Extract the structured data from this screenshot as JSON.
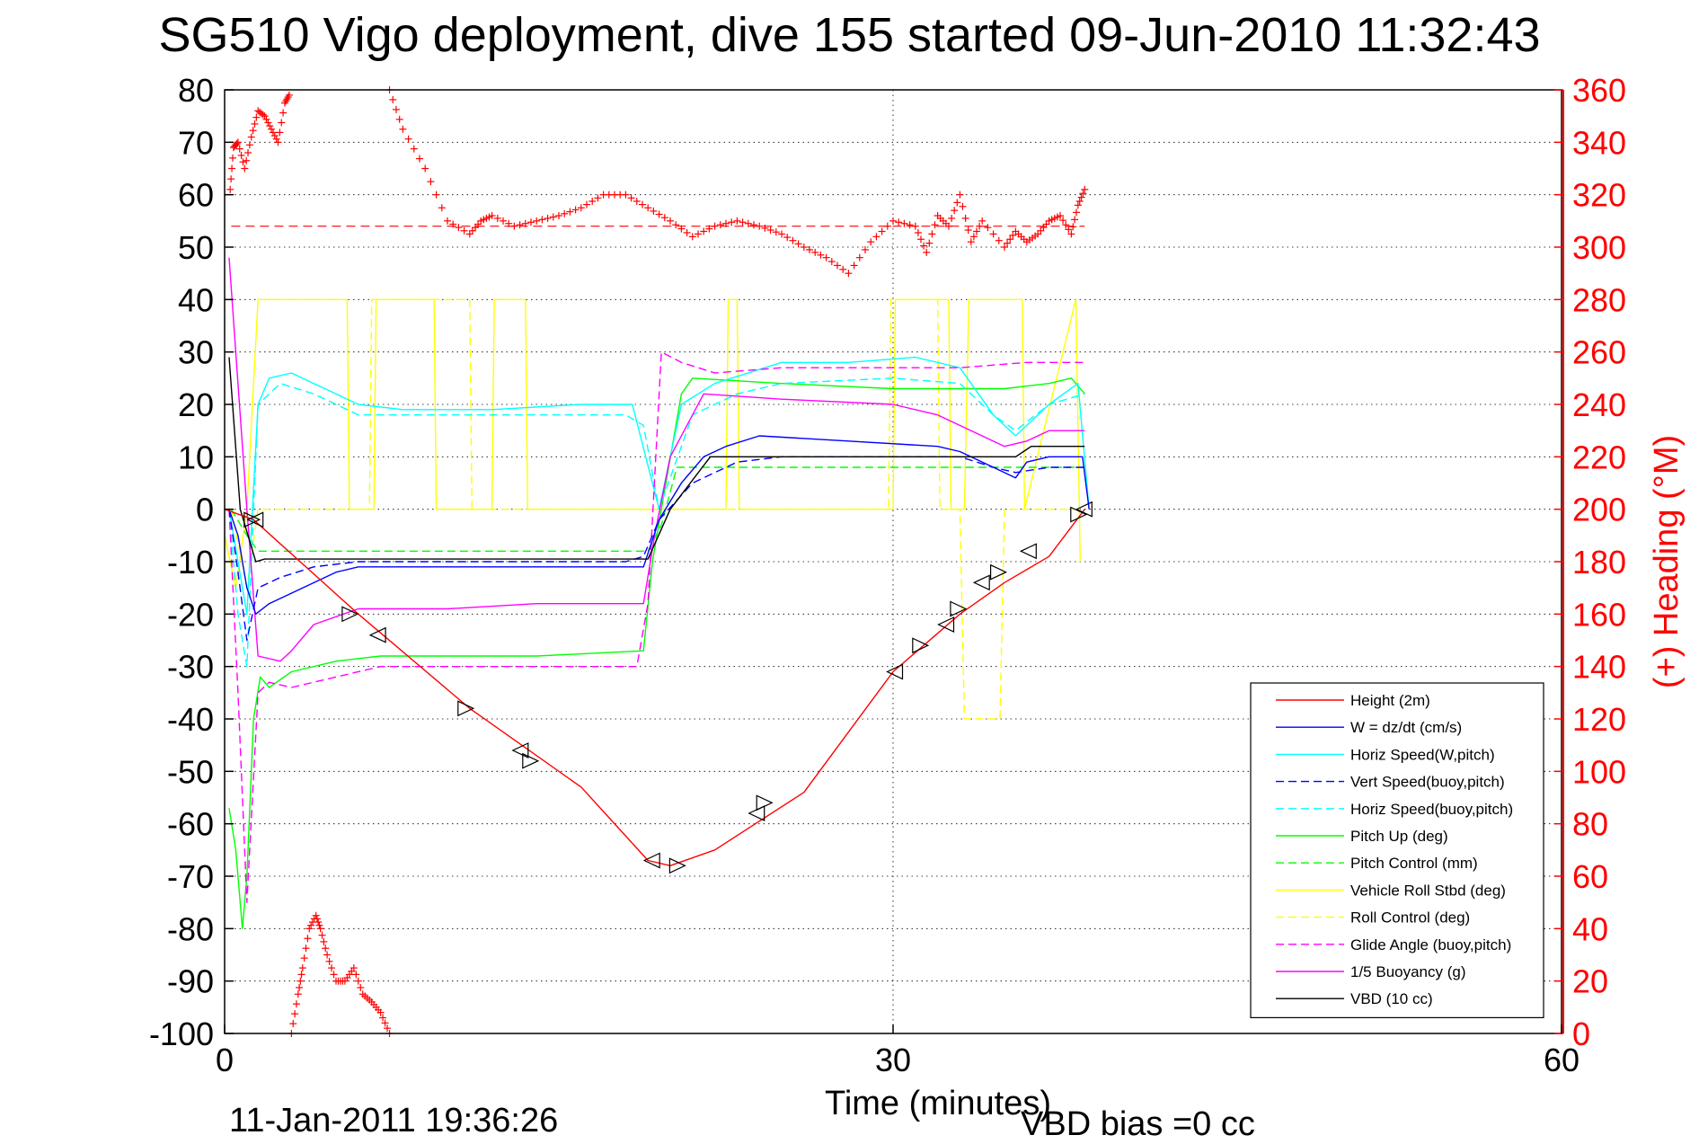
{
  "title": "SG510 Vigo deployment, dive 155 started 09-Jun-2010 11:32:43",
  "footer": {
    "timestamp": "11-Jan-2011 19:36:26",
    "vbd_bias": "VBD bias =0 cc"
  },
  "colors": {
    "height": "#ff0000",
    "w": "#0000ff",
    "horiz_speed": "#00ffff",
    "pitch": "#00ff00",
    "roll": "#ffff00",
    "glide": "#ff00ff",
    "vbd": "#000000",
    "heading": "#ff0000"
  },
  "chart_data": {
    "type": "line",
    "title": "SG510 Vigo deployment, dive 155 started 09-Jun-2010 11:32:43",
    "xlabel": "Time (minutes)",
    "ylabel": "",
    "y2label": "(+) Heading (°M)",
    "xlim": [
      0,
      60
    ],
    "ylim": [
      -100,
      80
    ],
    "y2lim": [
      0,
      360
    ],
    "xticks": [
      0,
      30,
      60
    ],
    "yticks": [
      80,
      70,
      60,
      50,
      40,
      30,
      20,
      10,
      0,
      -10,
      -20,
      -30,
      -40,
      -50,
      -60,
      -70,
      -80,
      -90,
      -100
    ],
    "y2ticks": [
      360,
      340,
      320,
      300,
      280,
      260,
      240,
      220,
      200,
      180,
      160,
      140,
      120,
      100,
      80,
      60,
      40,
      20,
      0
    ],
    "grid": "dotted",
    "legend_position": "bottom-right",
    "series": [
      {
        "name": "Height (2m)",
        "style": "solid",
        "color": "#ff0000",
        "x": [
          0,
          1.3,
          6,
          11,
          16,
          19,
          20,
          22,
          26,
          30,
          33,
          35,
          37,
          38.6
        ],
        "y": [
          0,
          -2,
          -20,
          -38,
          -53,
          -67,
          -68,
          -65,
          -54,
          -31,
          -20,
          -14,
          -9,
          0
        ]
      },
      {
        "name": "W = dz/dt (cm/s)",
        "style": "solid",
        "color": "#0000ff",
        "x": [
          0.2,
          0.6,
          1.0,
          1.4,
          2.0,
          3.5,
          5,
          6,
          10,
          14,
          17,
          18.8,
          19.5,
          20.5,
          21.5,
          22.5,
          24,
          28,
          32,
          33,
          34.5,
          35.5,
          36,
          37,
          38,
          38.5,
          38.8
        ],
        "y": [
          0,
          -5,
          -15,
          -20,
          -18,
          -15,
          -12,
          -11,
          -11,
          -11,
          -11,
          -11,
          -2,
          5,
          10,
          12,
          14,
          13,
          12,
          11,
          8,
          6,
          9,
          10,
          10,
          10,
          0
        ]
      },
      {
        "name": "Horiz Speed(W,pitch)",
        "style": "solid",
        "color": "#00ffff",
        "x": [
          0.2,
          0.6,
          1.0,
          1.5,
          2.0,
          3,
          4,
          5,
          6,
          8,
          12,
          16,
          18.3,
          19.5,
          20.5,
          22,
          25,
          28,
          31,
          33,
          34.5,
          35.5,
          37,
          38.3,
          38.8
        ],
        "y": [
          0,
          -10,
          -20,
          20,
          25,
          26,
          24,
          22,
          20,
          19,
          19,
          20,
          20,
          0,
          20,
          24,
          28,
          28,
          29,
          27,
          18,
          14,
          20,
          24,
          0
        ]
      },
      {
        "name": "Vert Speed(buoy,pitch)",
        "style": "dashed",
        "color": "#0000ff",
        "x": [
          0.2,
          0.6,
          1.0,
          1.5,
          2.5,
          4,
          6,
          10,
          14,
          18,
          18.8,
          19.5,
          21,
          23,
          25,
          30,
          33,
          34.5,
          35.5,
          37,
          38.6
        ],
        "y": [
          0,
          -12,
          -25,
          -15,
          -13,
          -11,
          -10,
          -10,
          -10,
          -10,
          -9,
          -2,
          5,
          9,
          10,
          10,
          10,
          8,
          7,
          8,
          8
        ]
      },
      {
        "name": "Horiz Speed(buoy,pitch)",
        "style": "dashed",
        "color": "#00ffff",
        "x": [
          0.2,
          0.6,
          1.0,
          1.5,
          2.5,
          4,
          6,
          10,
          14,
          18,
          18.8,
          19.5,
          21,
          23,
          25,
          30,
          33,
          34.5,
          35.5,
          37,
          38.6
        ],
        "y": [
          0,
          -20,
          -30,
          20,
          24,
          22,
          18,
          18,
          18,
          18,
          16,
          0,
          18,
          22,
          24,
          25,
          24,
          18,
          15,
          20,
          22
        ]
      },
      {
        "name": "Pitch Up (deg)",
        "style": "solid",
        "color": "#00ff00",
        "x": [
          0.2,
          0.5,
          0.8,
          1.0,
          1.3,
          1.6,
          2,
          3,
          5,
          7,
          10,
          14,
          18.8,
          19.2,
          19.6,
          20.5,
          21,
          25,
          30,
          35,
          37,
          38,
          38.6
        ],
        "y": [
          -57,
          -65,
          -80,
          -70,
          -40,
          -32,
          -34,
          -31,
          -29,
          -28,
          -28,
          -28,
          -27,
          -10,
          0,
          22,
          25,
          24,
          23,
          23,
          24,
          25,
          22
        ]
      },
      {
        "name": "Pitch Control (mm)",
        "style": "dashed",
        "color": "#00ff00",
        "x": [
          0.3,
          1.0,
          1.5,
          2,
          19,
          19.6,
          20.3,
          38.6
        ],
        "y": [
          0,
          -5,
          -8,
          -8,
          -8,
          -3,
          8,
          8
        ]
      },
      {
        "name": "Vehicle Roll Stbd (deg)",
        "style": "solid",
        "color": "#ffff00",
        "x": [
          0,
          0.5,
          1.0,
          1.5,
          1.6,
          2,
          5.5,
          5.6,
          6.7,
          6.8,
          9.4,
          9.5,
          12,
          12.1,
          13.5,
          13.6,
          18.8,
          19.0,
          22.5,
          22.6,
          23,
          23.1,
          30,
          30.1,
          32.5,
          32.6,
          33.2,
          33.4,
          35.8,
          35.9,
          38.2,
          38.4
        ],
        "y": [
          -5,
          -15,
          0,
          40,
          40,
          40,
          40,
          0,
          0,
          40,
          40,
          0,
          0,
          40,
          40,
          0,
          0,
          0,
          0,
          40,
          40,
          0,
          0,
          40,
          40,
          0,
          0,
          40,
          40,
          0,
          40,
          -10
        ]
      },
      {
        "name": "Roll Control (deg)",
        "style": "dashed",
        "color": "#ffff00",
        "x": [
          0.3,
          1.0,
          1.5,
          1.6,
          6.5,
          6.6,
          11,
          11.1,
          18.8,
          19.0,
          23,
          23.1,
          29.8,
          29.9,
          32,
          32.1,
          33,
          33.2,
          34.8,
          35,
          38.3
        ],
        "y": [
          0,
          -15,
          0,
          0,
          0,
          40,
          40,
          0,
          0,
          0,
          0,
          0,
          0,
          40,
          40,
          0,
          0,
          -40,
          -40,
          0,
          0
        ]
      },
      {
        "name": "Glide Angle (buoy,pitch)",
        "style": "dashed",
        "color": "#ff00ff",
        "x": [
          0.2,
          0.6,
          1.0,
          1.5,
          2,
          3,
          5,
          7,
          10,
          14,
          18.5,
          19.0,
          19.6,
          20.5,
          22,
          25,
          30,
          33,
          36,
          38.6
        ],
        "y": [
          0,
          -35,
          -75,
          -35,
          -33,
          -34,
          -32,
          -30,
          -30,
          -30,
          -30,
          -18,
          30,
          28,
          26,
          27,
          27,
          27,
          28,
          28
        ]
      },
      {
        "name": "1/5 Buoyancy (g)",
        "style": "solid",
        "color": "#ff00ff",
        "x": [
          0.2,
          0.5,
          1.0,
          1.5,
          2.5,
          3,
          4,
          6,
          10,
          14,
          18.8,
          19.3,
          20.0,
          21.5,
          25,
          30,
          32,
          33.5,
          35,
          36,
          37,
          38.6
        ],
        "y": [
          48,
          30,
          0,
          -28,
          -29,
          -27,
          -22,
          -19,
          -19,
          -18,
          -18,
          -5,
          10,
          22,
          21,
          20,
          18,
          15,
          12,
          13,
          15,
          15
        ]
      },
      {
        "name": "VBD (10 cc)",
        "style": "solid",
        "color": "#000000",
        "x": [
          0.2,
          0.7,
          1.4,
          1.8,
          19,
          20,
          21.8,
          22,
          35.5,
          36.2,
          38.6
        ],
        "y": [
          29,
          0,
          -10,
          -9.5,
          -9.5,
          0,
          10,
          10,
          10,
          12,
          12
        ]
      }
    ],
    "heading": {
      "name": "(+) Heading (°M)",
      "axis": "right",
      "marker": "+",
      "color": "#ff0000",
      "reference_line": 308,
      "segments": [
        {
          "x": [
            0.25,
            0.4,
            0.6,
            0.9,
            1.2,
            1.5,
            1.8,
            2.1,
            2.4,
            2.7,
            2.9
          ],
          "y": [
            322,
            338,
            340,
            330,
            342,
            352,
            350,
            345,
            340,
            355,
            358
          ]
        },
        {
          "x": [
            3.0,
            3.3,
            3.5,
            3.8,
            4.1,
            4.3,
            4.6,
            5.0,
            5.4,
            5.8,
            6.2,
            6.6,
            7.0,
            7.4
          ],
          "y": [
            0,
            15,
            25,
            40,
            45,
            40,
            30,
            20,
            20,
            25,
            15,
            12,
            8,
            0
          ]
        },
        {
          "x": [
            7.4,
            8,
            9,
            10,
            11,
            11.5,
            12,
            13,
            14,
            15,
            16,
            17,
            18,
            19,
            20,
            21,
            22,
            23,
            24,
            25,
            26,
            27,
            28,
            29,
            30,
            31,
            31.5,
            32,
            32.5,
            33,
            33.5,
            34,
            35,
            35.5,
            36,
            36.5,
            37,
            37.5,
            38,
            38.3,
            38.6
          ],
          "y": [
            360,
            345,
            330,
            310,
            305,
            310,
            312,
            308,
            310,
            312,
            315,
            320,
            320,
            315,
            310,
            304,
            308,
            310,
            308,
            305,
            300,
            296,
            290,
            302,
            310,
            308,
            298,
            312,
            308,
            320,
            302,
            310,
            300,
            306,
            302,
            305,
            310,
            312,
            305,
            316,
            322
          ]
        }
      ]
    },
    "event_markers": {
      "shape": "triangle",
      "x": [
        1.2,
        1.4,
        5.6,
        6.9,
        10.8,
        13.3,
        13.7,
        19.2,
        20.3,
        23.9,
        24.2,
        30.1,
        31.2,
        32.4,
        32.9,
        34,
        34.7,
        36.1,
        38.3,
        38.6
      ],
      "y": [
        -2,
        -2,
        -20,
        -24,
        -38,
        -46,
        -48,
        -67,
        -68,
        -58,
        -56,
        -31,
        -26,
        -22,
        -19,
        -14,
        -12,
        -8,
        -1,
        0
      ]
    }
  }
}
